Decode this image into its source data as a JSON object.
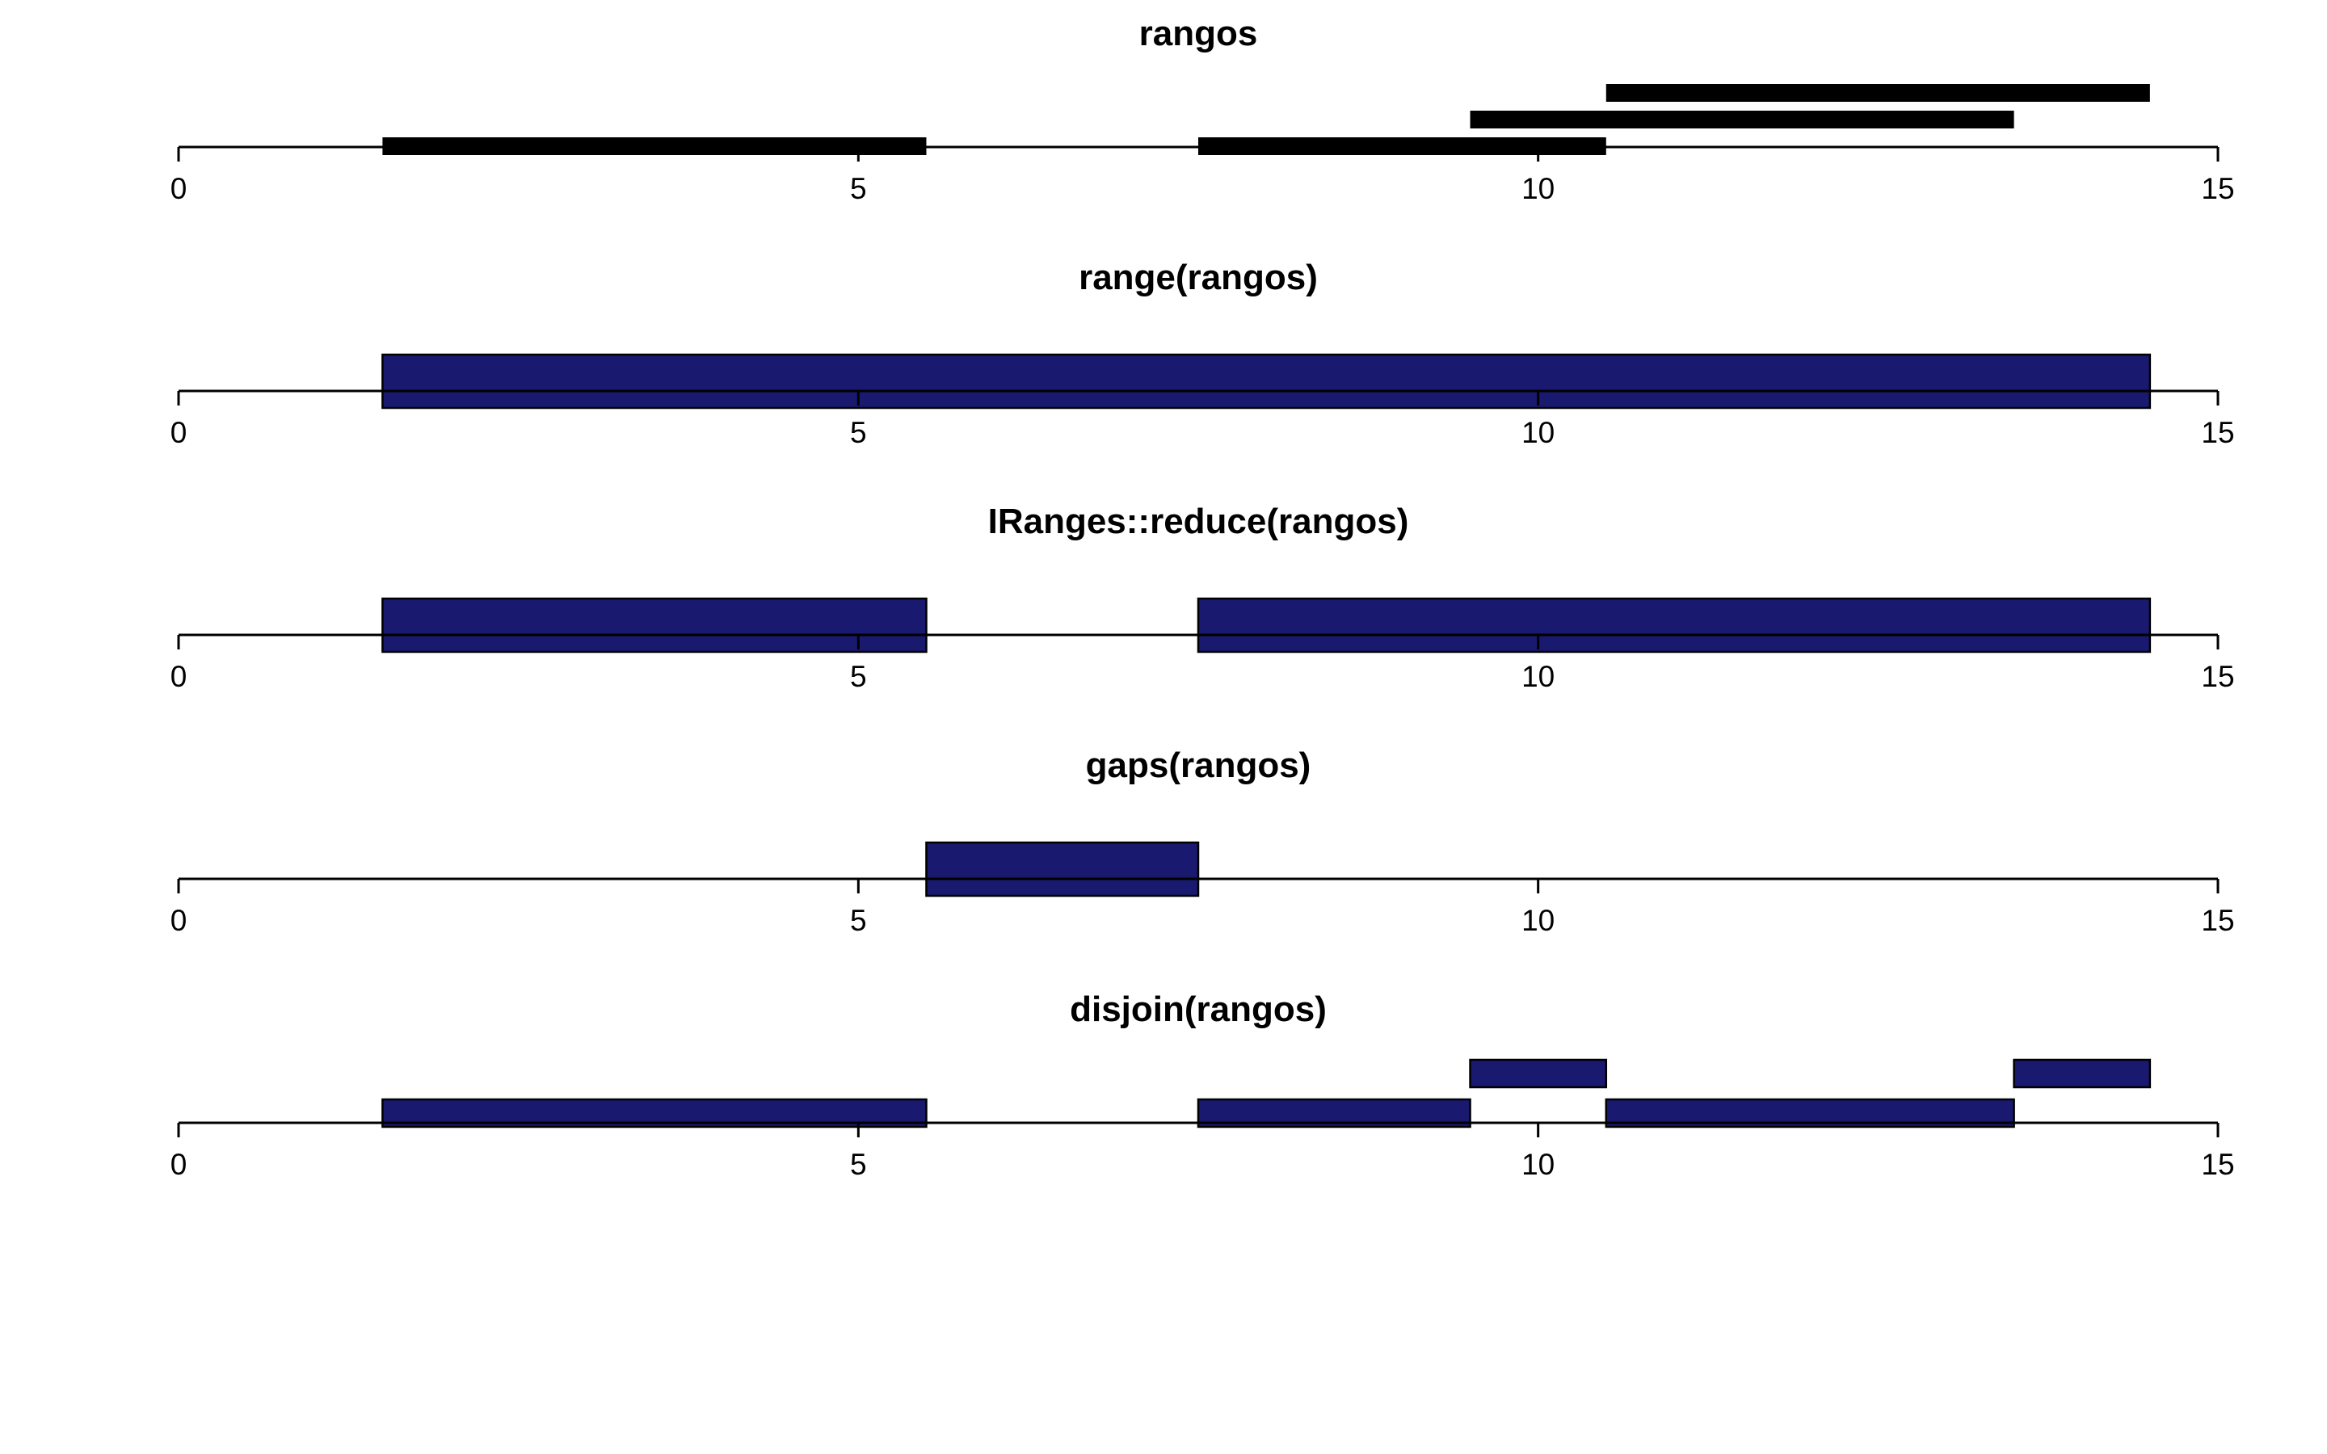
{
  "colors": {
    "background": "#ffffff",
    "input_range_fill": "#000000",
    "result_range_fill": "#191970",
    "outline": "#000000"
  },
  "chart_data": [
    {
      "type": "range",
      "title": "rangos",
      "xlim": [
        0,
        15
      ],
      "ticks": [
        0,
        5,
        10,
        15
      ],
      "tick_labels": [
        "0",
        "5",
        "10",
        "15"
      ],
      "grid": false,
      "style": "thin",
      "ranges": [
        {
          "start": 1.5,
          "end": 5.5,
          "row": 0
        },
        {
          "start": 7.5,
          "end": 10.5,
          "row": 0
        },
        {
          "start": 9.5,
          "end": 13.5,
          "row": 1
        },
        {
          "start": 10.5,
          "end": 14.5,
          "row": 2
        }
      ]
    },
    {
      "type": "range",
      "title": "range(rangos)",
      "xlim": [
        0,
        15
      ],
      "ticks": [
        0,
        5,
        10,
        15
      ],
      "tick_labels": [
        "0",
        "5",
        "10",
        "15"
      ],
      "grid": false,
      "style": "thick",
      "ranges": [
        {
          "start": 1.5,
          "end": 14.5,
          "row": 0
        }
      ]
    },
    {
      "type": "range",
      "title": "IRanges::reduce(rangos)",
      "xlim": [
        0,
        15
      ],
      "ticks": [
        0,
        5,
        10,
        15
      ],
      "tick_labels": [
        "0",
        "5",
        "10",
        "15"
      ],
      "grid": false,
      "style": "thick",
      "ranges": [
        {
          "start": 1.5,
          "end": 5.5,
          "row": 0
        },
        {
          "start": 7.5,
          "end": 14.5,
          "row": 0
        }
      ]
    },
    {
      "type": "range",
      "title": "gaps(rangos)",
      "xlim": [
        0,
        15
      ],
      "ticks": [
        0,
        5,
        10,
        15
      ],
      "tick_labels": [
        "0",
        "5",
        "10",
        "15"
      ],
      "grid": false,
      "style": "thick",
      "ranges": [
        {
          "start": 5.5,
          "end": 7.5,
          "row": 0
        }
      ]
    },
    {
      "type": "range",
      "title": "disjoin(rangos)",
      "xlim": [
        0,
        15
      ],
      "ticks": [
        0,
        5,
        10,
        15
      ],
      "tick_labels": [
        "0",
        "5",
        "10",
        "15"
      ],
      "grid": false,
      "style": "medium",
      "ranges": [
        {
          "start": 1.5,
          "end": 5.5,
          "row": 0
        },
        {
          "start": 7.5,
          "end": 9.5,
          "row": 0
        },
        {
          "start": 10.5,
          "end": 13.5,
          "row": 0
        },
        {
          "start": 9.5,
          "end": 10.5,
          "row": 1
        },
        {
          "start": 13.5,
          "end": 14.5,
          "row": 1
        }
      ]
    }
  ]
}
